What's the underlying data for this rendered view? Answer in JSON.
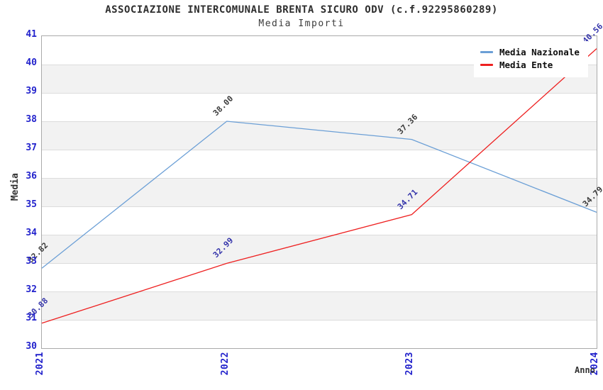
{
  "header": {
    "title": "ASSOCIAZIONE INTERCOMUNALE BRENTA SICURO ODV (c.f.92295860289)",
    "subtitle": "Media Importi"
  },
  "chart_data": {
    "type": "line",
    "title": "ASSOCIAZIONE INTERCOMUNALE BRENTA SICURO ODV (c.f.92295860289)",
    "subtitle": "Media Importi",
    "categories": [
      "2021",
      "2022",
      "2023",
      "2024"
    ],
    "series": [
      {
        "name": "Media Nazionale",
        "color": "#6b9fd6",
        "label_color": "#3a3a3a",
        "values": [
          32.82,
          38.0,
          37.36,
          34.79
        ]
      },
      {
        "name": "Media Ente",
        "color": "#ee2020",
        "label_color": "#3333aa",
        "values": [
          30.88,
          32.99,
          34.71,
          40.56
        ]
      }
    ],
    "xlabel": "Anno",
    "ylabel": "Media",
    "ylim": [
      30,
      41
    ],
    "ytick_step": 1,
    "yticks": [
      30,
      31,
      32,
      33,
      34,
      35,
      36,
      37,
      38,
      39,
      40,
      41
    ],
    "grid": "horizontal-alternating-bands",
    "band_color": "#f2f2f2",
    "gridline_color": "#dcdcdc",
    "tick_label_color": "#2222cc",
    "legend_position": "top-right-inside",
    "value_label_format": "2-decimals"
  }
}
